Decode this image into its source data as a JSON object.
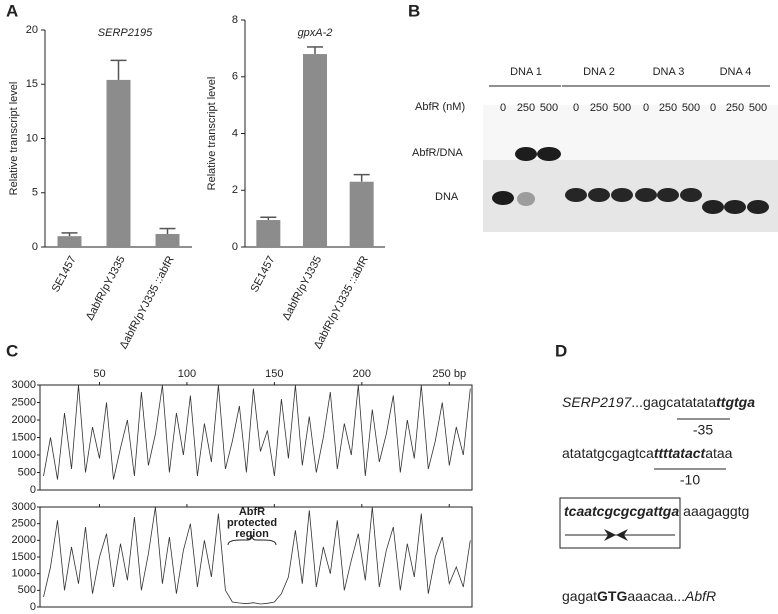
{
  "panel_labels": [
    "A",
    "B",
    "C",
    "D"
  ],
  "chart_data": [
    {
      "type": "bar",
      "title": "SERP2195",
      "y_label": "Relative transcript level",
      "categories": [
        "SE1457",
        "ΔabfR/pYJ335",
        "ΔabfR/pYJ335 ::abfR"
      ],
      "values": [
        1.0,
        15.4,
        1.2
      ],
      "errors": [
        0.3,
        1.8,
        0.5
      ],
      "color": "#8c8c8c",
      "ylim": [
        0,
        20
      ],
      "yticks": [
        0,
        5,
        10,
        15,
        20
      ]
    },
    {
      "type": "bar",
      "title": "gpxA-2",
      "y_label": "Relative transcript level",
      "categories": [
        "SE1457",
        "ΔabfR/pYJ335",
        "ΔabfR/pYJ335 ::abfR"
      ],
      "values": [
        0.95,
        6.8,
        2.3
      ],
      "errors": [
        0.1,
        0.25,
        0.25
      ],
      "color": "#8c8c8c",
      "ylim": [
        0,
        8
      ],
      "yticks": [
        0,
        2,
        4,
        6,
        8
      ]
    },
    {
      "type": "line",
      "color": "#333333",
      "x": [
        18,
        22,
        26,
        30,
        34,
        38,
        42,
        46,
        50,
        54,
        58,
        62,
        66,
        70,
        74,
        78,
        82,
        86,
        90,
        94,
        98,
        102,
        106,
        110,
        114,
        118,
        122,
        126,
        130,
        134,
        138,
        142,
        146,
        150,
        154,
        158,
        162,
        166,
        170,
        174,
        178,
        182,
        186,
        190,
        194,
        198,
        202,
        206,
        210,
        214,
        218,
        222,
        226,
        230,
        234,
        238,
        242,
        246,
        250,
        254,
        258,
        262
      ],
      "values": [
        400,
        1500,
        300,
        2200,
        600,
        3000,
        500,
        1800,
        900,
        2500,
        300,
        1200,
        2000,
        400,
        2800,
        700,
        1600,
        3000,
        500,
        2200,
        1000,
        2700,
        400,
        1900,
        800,
        3000,
        600,
        1400,
        2400,
        500,
        2900,
        1100,
        1700,
        400,
        2600,
        900,
        3000,
        700,
        2100,
        500,
        1500,
        2800,
        600,
        1900,
        1000,
        3000,
        400,
        2300,
        800,
        1600,
        2700,
        500,
        2000,
        900,
        3000,
        600,
        1400,
        2500,
        700,
        1800,
        1000,
        2900
      ],
      "xlim": [
        16,
        263
      ],
      "xticks": [
        50,
        100,
        150,
        200,
        {
          "value": 250,
          "label": "250 bp"
        }
      ],
      "ylim": [
        0,
        3000
      ],
      "yticks": [
        0,
        500,
        1000,
        1500,
        2000,
        2500,
        3000
      ]
    },
    {
      "type": "line",
      "color": "#333333",
      "x": [
        18,
        22,
        26,
        30,
        34,
        38,
        42,
        46,
        50,
        54,
        58,
        62,
        66,
        70,
        74,
        78,
        82,
        86,
        90,
        94,
        98,
        102,
        106,
        110,
        114,
        118,
        122,
        126,
        130,
        134,
        138,
        142,
        146,
        150,
        154,
        158,
        162,
        166,
        170,
        174,
        178,
        182,
        186,
        190,
        194,
        198,
        202,
        206,
        210,
        214,
        218,
        222,
        226,
        230,
        234,
        238,
        242,
        246,
        250,
        254,
        258,
        262
      ],
      "values": [
        300,
        1200,
        2600,
        500,
        1800,
        700,
        2400,
        400,
        1500,
        2200,
        600,
        1900,
        800,
        2700,
        500,
        1600,
        3000,
        700,
        2100,
        400,
        1700,
        2500,
        600,
        2000,
        900,
        2800,
        500,
        150,
        120,
        100,
        130,
        90,
        110,
        150,
        400,
        900,
        2300,
        700,
        2900,
        600,
        1800,
        1000,
        2600,
        500,
        1400,
        2200,
        800,
        3000,
        600,
        1700,
        2400,
        500,
        1900,
        900,
        2800,
        400,
        1500,
        2100,
        700,
        1200,
        600,
        2000
      ],
      "xlim": [
        16,
        263
      ],
      "xticks": [
        50,
        100,
        150,
        200,
        250
      ],
      "ylim": [
        0,
        3000
      ],
      "yticks": [
        0,
        500,
        1000,
        1500,
        2000,
        2500,
        3000
      ],
      "annotation": [
        "AbfR",
        "protected",
        "region"
      ]
    }
  ],
  "gel": {
    "groups": [
      "DNA 1",
      "DNA 2",
      "DNA 3",
      "DNA 4"
    ],
    "concentration_label": "AbfR (nM)",
    "concentrations": [
      0,
      250,
      500
    ],
    "band_labels": [
      "AbfR/DNA",
      "DNA"
    ]
  },
  "sequence": {
    "line1": [
      "SERP2197",
      "...gagcatatata",
      "ttgtga"
    ],
    "box35": "-35",
    "line2": [
      "atatatgcgagtca",
      "ttttatact",
      "ataa"
    ],
    "box10": "-10",
    "line3": [
      "tcaatcgcgcgattga",
      "aaagaggtg"
    ],
    "line4": [
      "gagat",
      "GTG",
      "aaacaa...",
      "AbfR"
    ]
  }
}
